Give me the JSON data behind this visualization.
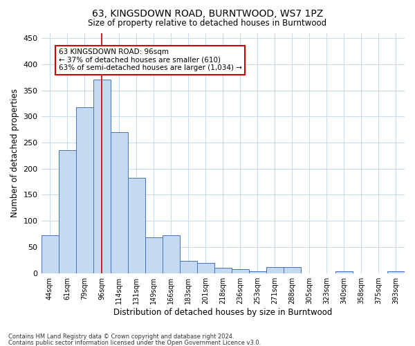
{
  "title": "63, KINGSDOWN ROAD, BURNTWOOD, WS7 1PZ",
  "subtitle": "Size of property relative to detached houses in Burntwood",
  "xlabel": "Distribution of detached houses by size in Burntwood",
  "ylabel": "Number of detached properties",
  "categories": [
    "44sqm",
    "61sqm",
    "79sqm",
    "96sqm",
    "114sqm",
    "131sqm",
    "149sqm",
    "166sqm",
    "183sqm",
    "201sqm",
    "218sqm",
    "236sqm",
    "253sqm",
    "271sqm",
    "288sqm",
    "305sqm",
    "323sqm",
    "340sqm",
    "358sqm",
    "375sqm",
    "393sqm"
  ],
  "values": [
    72,
    235,
    318,
    370,
    270,
    183,
    68,
    72,
    24,
    20,
    10,
    8,
    4,
    11,
    11,
    0,
    0,
    4,
    0,
    0,
    3
  ],
  "bar_color": "#c5d9f0",
  "bar_edge_color": "#4472c4",
  "highlight_index": 3,
  "highlight_line_color": "#cc0000",
  "annotation_line1": "63 KINGSDOWN ROAD: 96sqm",
  "annotation_line2": "← 37% of detached houses are smaller (610)",
  "annotation_line3": "63% of semi-detached houses are larger (1,034) →",
  "annotation_box_color": "#ffffff",
  "annotation_box_edge_color": "#cc0000",
  "ylim": [
    0,
    460
  ],
  "yticks": [
    0,
    50,
    100,
    150,
    200,
    250,
    300,
    350,
    400,
    450
  ],
  "background_color": "#ffffff",
  "grid_color": "#c5d9f0",
  "footer_line1": "Contains HM Land Registry data © Crown copyright and database right 2024.",
  "footer_line2": "Contains public sector information licensed under the Open Government Licence v3.0."
}
